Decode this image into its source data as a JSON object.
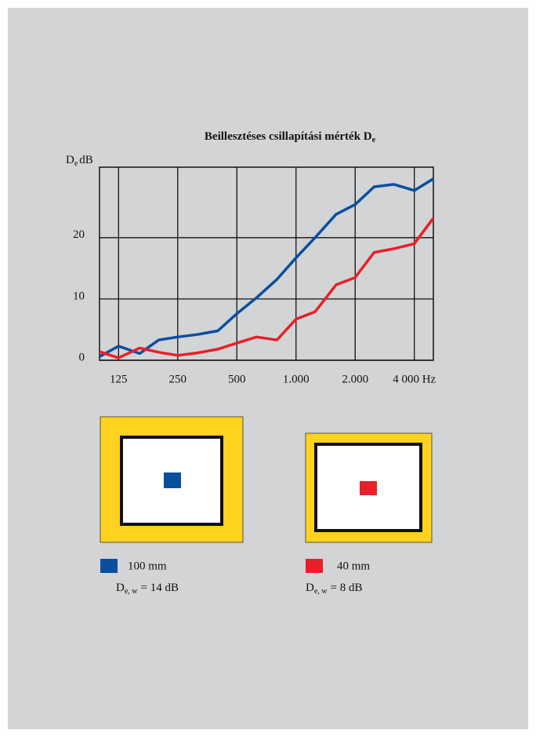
{
  "chart_data": {
    "type": "line",
    "title": [
      "Beillesztéses csillapítási mérték D",
      "e"
    ],
    "ylabel": [
      "D",
      "e",
      "dB"
    ],
    "x": [
      100,
      125,
      160,
      200,
      250,
      315,
      400,
      500,
      630,
      800,
      1000,
      1250,
      1600,
      2000,
      2500,
      3150,
      4000,
      5000
    ],
    "series": [
      {
        "name": "100 mm",
        "color": "#0a4f9e",
        "values": [
          0.6,
          2.3,
          1.1,
          3.3,
          3.8,
          4.2,
          4.8,
          7.6,
          10.2,
          13.2,
          16.7,
          20.0,
          23.8,
          25.4,
          28.3,
          28.7,
          27.7,
          29.6
        ]
      },
      {
        "name": "40 mm",
        "color": "#e8202a",
        "values": [
          1.4,
          0.4,
          2.0,
          1.3,
          0.8,
          1.2,
          1.8,
          2.8,
          3.8,
          3.3,
          6.7,
          7.9,
          12.3,
          13.5,
          17.6,
          18.2,
          19.0,
          23.2
        ]
      }
    ],
    "annotations": [
      [
        "D",
        "e, w",
        "= 14 dB"
      ],
      [
        "D",
        "e, w",
        "= 8 dB"
      ]
    ],
    "xlim": [
      100,
      5000
    ],
    "xscale": "log",
    "xticks": [
      125,
      250,
      500,
      {
        "value": 1000,
        "label": "1.000"
      },
      {
        "value": 2000,
        "label": "2.000"
      },
      {
        "value": 4000,
        "label": "4 000 Hz"
      }
    ],
    "ylim": [
      0,
      31.5
    ],
    "yticks": [
      0,
      10,
      20
    ],
    "grid": true
  }
}
